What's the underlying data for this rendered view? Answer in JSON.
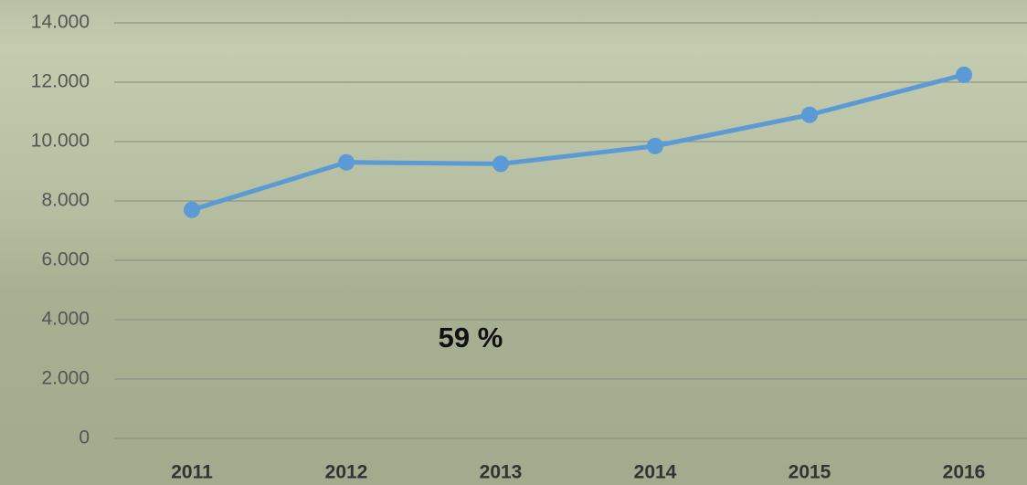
{
  "chart_data": {
    "type": "line",
    "categories": [
      "2011",
      "2012",
      "2013",
      "2014",
      "2015",
      "2016"
    ],
    "values": [
      7700,
      9300,
      9250,
      9850,
      10900,
      12250
    ],
    "color": "#5b9bd5",
    "ylim": [
      0,
      14000
    ],
    "yticks": [
      0,
      {
        "value": 2000,
        "label": "2.000"
      },
      {
        "value": 4000,
        "label": "4.000"
      },
      {
        "value": 6000,
        "label": "6.000"
      },
      {
        "value": 8000,
        "label": "8.000"
      },
      {
        "value": 10000,
        "label": "10.000"
      },
      {
        "value": 12000,
        "label": "12.000"
      },
      {
        "value": 14000,
        "label": "14.000"
      }
    ],
    "grid": true,
    "annotation": "59 %"
  }
}
